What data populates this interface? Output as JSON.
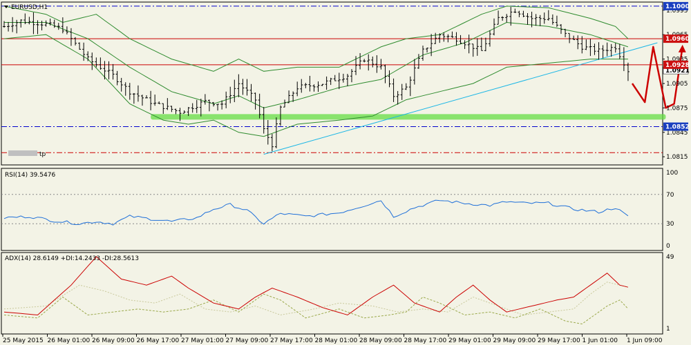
{
  "symbol_label": "EURUSD,H1",
  "colors": {
    "background": "#f3f3e6",
    "bars": "#000000",
    "bollinger": "#2e8b2e",
    "resistance": "#cc0000",
    "support": "#0000cc",
    "trendline": "#19b6e6",
    "zone": "#66dd44",
    "rsi": "#1e6fd9",
    "adx": "#cc0000",
    "di_plus": "#9aa84a",
    "di_minus": "#c8c89a",
    "projection": "#cc0000"
  },
  "price_panel": {
    "ylim": [
      1.0805,
      1.1005
    ],
    "price_scale_labels": [
      "1.0995",
      "1.0965",
      "1.0935",
      "1.0905",
      "1.0875",
      "1.0845",
      "1.0815"
    ],
    "note_label": "tp",
    "levels": [
      {
        "price": 1.1,
        "label": "1.1000",
        "style": "dashdot",
        "color": "#0000cc",
        "tag_bg": "#1a3fbf"
      },
      {
        "price": 1.096,
        "label": "1.0960",
        "style": "solid",
        "color": "#cc0000",
        "tag_bg": "#cc1111"
      },
      {
        "price": 1.0928,
        "label": "1.0928",
        "style": "solid",
        "color": "#cc0000",
        "tag_bg": "#cc1111"
      },
      {
        "price": 1.0852,
        "label": "1.0852",
        "style": "dashdot",
        "color": "#0000cc",
        "tag_bg": "#1a3fbf"
      },
      {
        "price": 1.082,
        "label": "",
        "style": "dashdot",
        "color": "#cc0000",
        "tag_bg": ""
      }
    ],
    "current_price_label": "1.0921",
    "current_price": 1.0921
  },
  "rsi_panel": {
    "label": "RSI(14) 39.5476",
    "scale_labels": [
      "100",
      "70",
      "30",
      "0"
    ]
  },
  "adx_panel": {
    "label": "ADX(14) 28.6149 +DI:14.2433 -DI:28.5613",
    "scale_labels": [
      "49",
      "1"
    ]
  },
  "time_axis": [
    "25 May 2015",
    "26 May 01:00",
    "26 May 09:00",
    "26 May 17:00",
    "27 May 01:00",
    "27 May 09:00",
    "27 May 17:00",
    "28 May 01:00",
    "28 May 09:00",
    "28 May 17:00",
    "29 May 01:00",
    "29 May 09:00",
    "29 May 17:00",
    "1 Jun 01:00",
    "1 Jun 09:00"
  ],
  "chart_data": {
    "type": "line",
    "title": "EURUSD,H1",
    "x_unit": "hourly bars",
    "price": {
      "bar_count": 150,
      "close_anchors": [
        [
          0,
          1.0975
        ],
        [
          4,
          1.0982
        ],
        [
          10,
          1.0978
        ],
        [
          14,
          1.0972
        ],
        [
          20,
          1.0935
        ],
        [
          26,
          1.0915
        ],
        [
          30,
          1.0895
        ],
        [
          36,
          1.088
        ],
        [
          42,
          1.087
        ],
        [
          48,
          1.0883
        ],
        [
          52,
          1.088
        ],
        [
          56,
          1.0905
        ],
        [
          60,
          1.0885
        ],
        [
          62,
          1.0848
        ],
        [
          64,
          1.083
        ],
        [
          66,
          1.0875
        ],
        [
          70,
          1.09
        ],
        [
          76,
          1.0905
        ],
        [
          82,
          1.0915
        ],
        [
          86,
          1.0935
        ],
        [
          90,
          1.0925
        ],
        [
          93,
          1.089
        ],
        [
          96,
          1.09
        ],
        [
          100,
          1.0945
        ],
        [
          104,
          1.0965
        ],
        [
          108,
          1.096
        ],
        [
          114,
          1.0945
        ],
        [
          118,
          1.0985
        ],
        [
          122,
          1.0995
        ],
        [
          126,
          1.0985
        ],
        [
          130,
          1.0985
        ],
        [
          134,
          1.0965
        ],
        [
          138,
          1.095
        ],
        [
          142,
          1.0945
        ],
        [
          146,
          1.095
        ],
        [
          149,
          1.0921
        ]
      ]
    },
    "bollinger": {
      "upper": [
        [
          0,
          1.1
        ],
        [
          10,
          1.099
        ],
        [
          14,
          1.098
        ],
        [
          22,
          1.099
        ],
        [
          30,
          1.096
        ],
        [
          40,
          1.0935
        ],
        [
          50,
          1.092
        ],
        [
          56,
          1.0935
        ],
        [
          62,
          1.092
        ],
        [
          70,
          1.0925
        ],
        [
          80,
          1.0925
        ],
        [
          90,
          1.095
        ],
        [
          96,
          1.096
        ],
        [
          104,
          1.0965
        ],
        [
          114,
          1.099
        ],
        [
          120,
          1.1
        ],
        [
          130,
          1.0998
        ],
        [
          140,
          1.0985
        ],
        [
          146,
          1.0975
        ],
        [
          149,
          1.096
        ]
      ],
      "middle": [
        [
          0,
          1.098
        ],
        [
          10,
          1.098
        ],
        [
          20,
          1.096
        ],
        [
          30,
          1.0925
        ],
        [
          40,
          1.0895
        ],
        [
          50,
          1.088
        ],
        [
          56,
          1.089
        ],
        [
          62,
          1.0875
        ],
        [
          70,
          1.0885
        ],
        [
          80,
          1.09
        ],
        [
          90,
          1.091
        ],
        [
          100,
          1.094
        ],
        [
          110,
          1.0955
        ],
        [
          120,
          1.098
        ],
        [
          130,
          1.0975
        ],
        [
          140,
          1.0965
        ],
        [
          149,
          1.095
        ]
      ],
      "lower": [
        [
          0,
          1.096
        ],
        [
          10,
          1.0965
        ],
        [
          20,
          1.0935
        ],
        [
          30,
          1.088
        ],
        [
          38,
          1.086
        ],
        [
          44,
          1.0855
        ],
        [
          50,
          1.086
        ],
        [
          56,
          1.0845
        ],
        [
          62,
          1.084
        ],
        [
          70,
          1.0855
        ],
        [
          80,
          1.086
        ],
        [
          88,
          1.0865
        ],
        [
          96,
          1.0885
        ],
        [
          104,
          1.0895
        ],
        [
          112,
          1.0905
        ],
        [
          120,
          1.0925
        ],
        [
          130,
          1.093
        ],
        [
          140,
          1.0935
        ],
        [
          149,
          1.0935
        ]
      ]
    },
    "trendline": [
      [
        62,
        1.0818
      ],
      [
        156,
        1.0955
      ]
    ],
    "support_zone": {
      "x": [
        35,
        158
      ],
      "price": 1.0864
    },
    "projection": [
      [
        150,
        1.0905
      ],
      [
        153,
        1.0882
      ],
      [
        155,
        1.095
      ],
      [
        158,
        1.0875
      ],
      [
        160,
        1.088
      ],
      [
        162,
        1.095
      ]
    ],
    "rsi": {
      "ylim": [
        0,
        100
      ],
      "levels": [
        70,
        30
      ],
      "anchors": [
        [
          0,
          38
        ],
        [
          6,
          40
        ],
        [
          12,
          34
        ],
        [
          18,
          30
        ],
        [
          22,
          33
        ],
        [
          26,
          30
        ],
        [
          30,
          40
        ],
        [
          36,
          36
        ],
        [
          40,
          33
        ],
        [
          46,
          38
        ],
        [
          50,
          50
        ],
        [
          54,
          56
        ],
        [
          58,
          48
        ],
        [
          62,
          30
        ],
        [
          66,
          44
        ],
        [
          72,
          40
        ],
        [
          80,
          45
        ],
        [
          86,
          55
        ],
        [
          90,
          62
        ],
        [
          93,
          40
        ],
        [
          98,
          52
        ],
        [
          104,
          62
        ],
        [
          110,
          58
        ],
        [
          116,
          55
        ],
        [
          120,
          60
        ],
        [
          124,
          58
        ],
        [
          130,
          58
        ],
        [
          136,
          50
        ],
        [
          142,
          46
        ],
        [
          146,
          52
        ],
        [
          149,
          39.5
        ]
      ]
    },
    "adx": {
      "ylim": [
        1,
        49
      ],
      "adx": [
        [
          0,
          12
        ],
        [
          8,
          10
        ],
        [
          16,
          30
        ],
        [
          22,
          49
        ],
        [
          28,
          34
        ],
        [
          34,
          30
        ],
        [
          40,
          36
        ],
        [
          44,
          28
        ],
        [
          50,
          18
        ],
        [
          56,
          14
        ],
        [
          60,
          22
        ],
        [
          64,
          28
        ],
        [
          70,
          22
        ],
        [
          76,
          15
        ],
        [
          82,
          10
        ],
        [
          88,
          22
        ],
        [
          93,
          30
        ],
        [
          98,
          18
        ],
        [
          104,
          12
        ],
        [
          108,
          22
        ],
        [
          112,
          30
        ],
        [
          116,
          20
        ],
        [
          120,
          12
        ],
        [
          126,
          16
        ],
        [
          132,
          20
        ],
        [
          136,
          22
        ],
        [
          140,
          30
        ],
        [
          144,
          38
        ],
        [
          147,
          30
        ],
        [
          149,
          28.6
        ]
      ],
      "di_plus": [
        [
          0,
          10
        ],
        [
          8,
          8
        ],
        [
          14,
          22
        ],
        [
          20,
          10
        ],
        [
          26,
          12
        ],
        [
          32,
          14
        ],
        [
          38,
          12
        ],
        [
          44,
          14
        ],
        [
          50,
          20
        ],
        [
          56,
          12
        ],
        [
          62,
          24
        ],
        [
          66,
          20
        ],
        [
          72,
          8
        ],
        [
          80,
          14
        ],
        [
          86,
          8
        ],
        [
          92,
          10
        ],
        [
          96,
          12
        ],
        [
          100,
          22
        ],
        [
          104,
          18
        ],
        [
          110,
          10
        ],
        [
          116,
          12
        ],
        [
          122,
          8
        ],
        [
          128,
          14
        ],
        [
          134,
          6
        ],
        [
          138,
          4
        ],
        [
          144,
          16
        ],
        [
          147,
          20
        ],
        [
          149,
          14.2
        ]
      ],
      "di_minus": [
        [
          0,
          14
        ],
        [
          10,
          16
        ],
        [
          18,
          30
        ],
        [
          24,
          26
        ],
        [
          30,
          20
        ],
        [
          36,
          18
        ],
        [
          42,
          24
        ],
        [
          48,
          14
        ],
        [
          54,
          12
        ],
        [
          60,
          16
        ],
        [
          66,
          10
        ],
        [
          74,
          14
        ],
        [
          80,
          18
        ],
        [
          88,
          16
        ],
        [
          94,
          12
        ],
        [
          100,
          14
        ],
        [
          106,
          12
        ],
        [
          112,
          22
        ],
        [
          118,
          16
        ],
        [
          124,
          10
        ],
        [
          130,
          12
        ],
        [
          136,
          14
        ],
        [
          140,
          24
        ],
        [
          144,
          32
        ],
        [
          149,
          28.6
        ]
      ]
    }
  }
}
